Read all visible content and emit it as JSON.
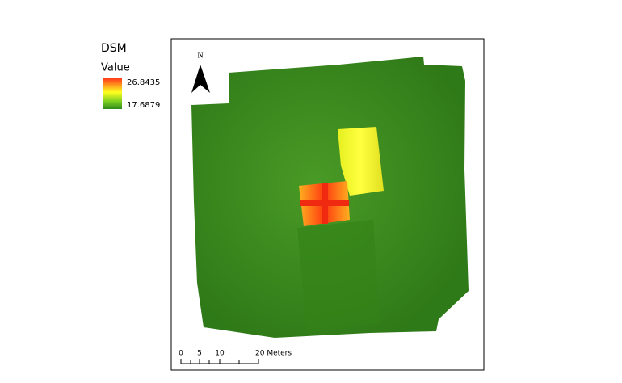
{
  "legend": {
    "title": "DSM",
    "subtitle": "Value",
    "high": "26.8435",
    "low": "17.6879"
  },
  "north_arrow": {
    "label": "N"
  },
  "scale_bar": {
    "labels": [
      "0",
      "5",
      "10",
      "20 Meters"
    ]
  }
}
